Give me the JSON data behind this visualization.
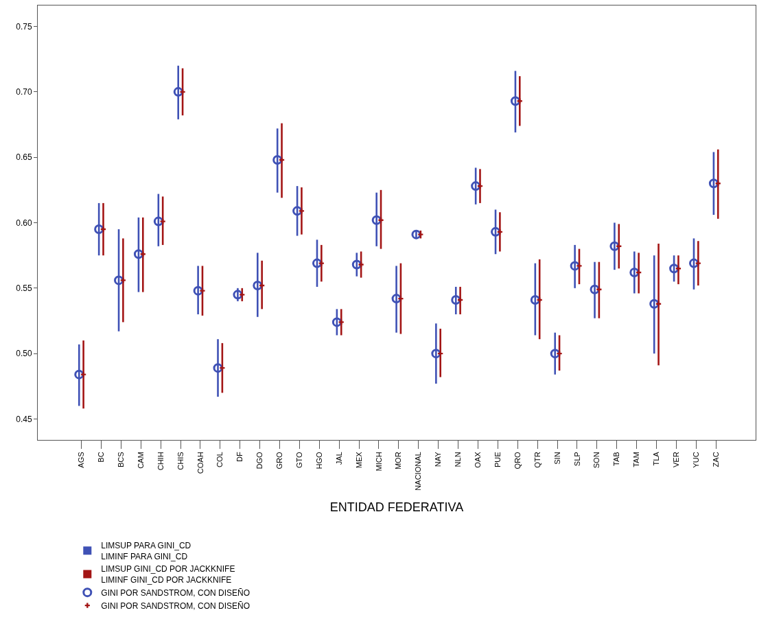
{
  "chart_data": {
    "type": "scatter",
    "xlabel": "ENTIDAD FEDERATIVA",
    "categories": [
      "AGS",
      "BC",
      "BCS",
      "CAM",
      "CHIH",
      "CHIS",
      "COAH",
      "COL",
      "DF",
      "DGO",
      "GRO",
      "GTO",
      "HGO",
      "JAL",
      "MEX",
      "MICH",
      "MOR",
      "NACIONAL",
      "NAY",
      "NLN",
      "OAX",
      "PUE",
      "QRO",
      "QTR",
      "SIN",
      "SLP",
      "SON",
      "TAB",
      "TAM",
      "TLA",
      "VER",
      "YUC",
      "ZAC"
    ],
    "ylim": [
      0.434,
      0.766
    ],
    "yticks": [
      {
        "value": 0.45,
        "label": "0.45"
      },
      {
        "value": 0.5,
        "label": "0.50"
      },
      {
        "value": 0.55,
        "label": "0.55"
      },
      {
        "value": 0.6,
        "label": "0.60"
      },
      {
        "value": 0.65,
        "label": "0.65"
      },
      {
        "value": 0.7,
        "label": "0.70"
      },
      {
        "value": 0.75,
        "label": "0.75"
      }
    ],
    "legend": "bottom",
    "series": [
      {
        "type": "bar",
        "name": "LIMSUP PARA GINI_CD\nLIMINF PARA GINI_CD",
        "color": "#3f51b5",
        "line_style": "solid",
        "base": [
          0.46,
          0.575,
          0.517,
          0.547,
          0.582,
          0.679,
          0.53,
          0.467,
          0.54,
          0.528,
          0.623,
          0.59,
          0.551,
          0.514,
          0.559,
          0.582,
          0.516,
          0.588,
          0.477,
          0.53,
          0.614,
          0.576,
          0.669,
          0.514,
          0.484,
          0.55,
          0.527,
          0.564,
          0.546,
          0.5,
          0.555,
          0.549,
          0.606
        ],
        "values": [
          0.047,
          0.04,
          0.078,
          0.057,
          0.04,
          0.041,
          0.037,
          0.044,
          0.01,
          0.049,
          0.049,
          0.038,
          0.036,
          0.02,
          0.018,
          0.041,
          0.051,
          0.006,
          0.046,
          0.021,
          0.028,
          0.034,
          0.047,
          0.055,
          0.032,
          0.033,
          0.043,
          0.036,
          0.032,
          0.075,
          0.02,
          0.039,
          0.048
        ]
      },
      {
        "type": "bar",
        "name": "LIMSUP GINI_CD POR JACKKNIFE\nLIMINF GINI_CD POR JACKKNIFE",
        "color": "#a31515",
        "base": [
          0.458,
          0.575,
          0.524,
          0.547,
          0.583,
          0.682,
          0.529,
          0.47,
          0.54,
          0.534,
          0.619,
          0.591,
          0.555,
          0.514,
          0.558,
          0.58,
          0.515,
          0.588,
          0.482,
          0.53,
          0.615,
          0.578,
          0.674,
          0.511,
          0.487,
          0.553,
          0.527,
          0.565,
          0.546,
          0.491,
          0.553,
          0.552,
          0.603
        ],
        "values": [
          0.052,
          0.04,
          0.064,
          0.057,
          0.037,
          0.036,
          0.038,
          0.038,
          0.01,
          0.037,
          0.057,
          0.036,
          0.028,
          0.02,
          0.02,
          0.045,
          0.054,
          0.006,
          0.037,
          0.021,
          0.026,
          0.03,
          0.038,
          0.061,
          0.027,
          0.027,
          0.043,
          0.034,
          0.031,
          0.093,
          0.022,
          0.034,
          0.053
        ]
      },
      {
        "name": "GINI POR SANDSTROM, CON DISEÑO",
        "color": "#3f51b5",
        "marker": "circle",
        "values": [
          0.484,
          0.595,
          0.556,
          0.576,
          0.601,
          0.7,
          0.548,
          0.489,
          0.545,
          0.552,
          0.648,
          0.609,
          0.569,
          0.524,
          0.568,
          0.602,
          0.542,
          0.591,
          0.5,
          0.541,
          0.628,
          0.593,
          0.693,
          0.541,
          0.5,
          0.567,
          0.549,
          0.582,
          0.562,
          0.538,
          0.565,
          0.569,
          0.63
        ]
      },
      {
        "name": "GINI POR SANDSTROM, CON DISEÑO",
        "color": "#a31515",
        "marker": "cross",
        "values": [
          0.484,
          0.595,
          0.556,
          0.576,
          0.601,
          0.7,
          0.548,
          0.489,
          0.545,
          0.552,
          0.648,
          0.609,
          0.569,
          0.524,
          0.568,
          0.602,
          0.542,
          0.591,
          0.5,
          0.541,
          0.628,
          0.593,
          0.693,
          0.541,
          0.5,
          0.567,
          0.549,
          0.582,
          0.562,
          0.538,
          0.565,
          0.569,
          0.63
        ]
      }
    ]
  }
}
